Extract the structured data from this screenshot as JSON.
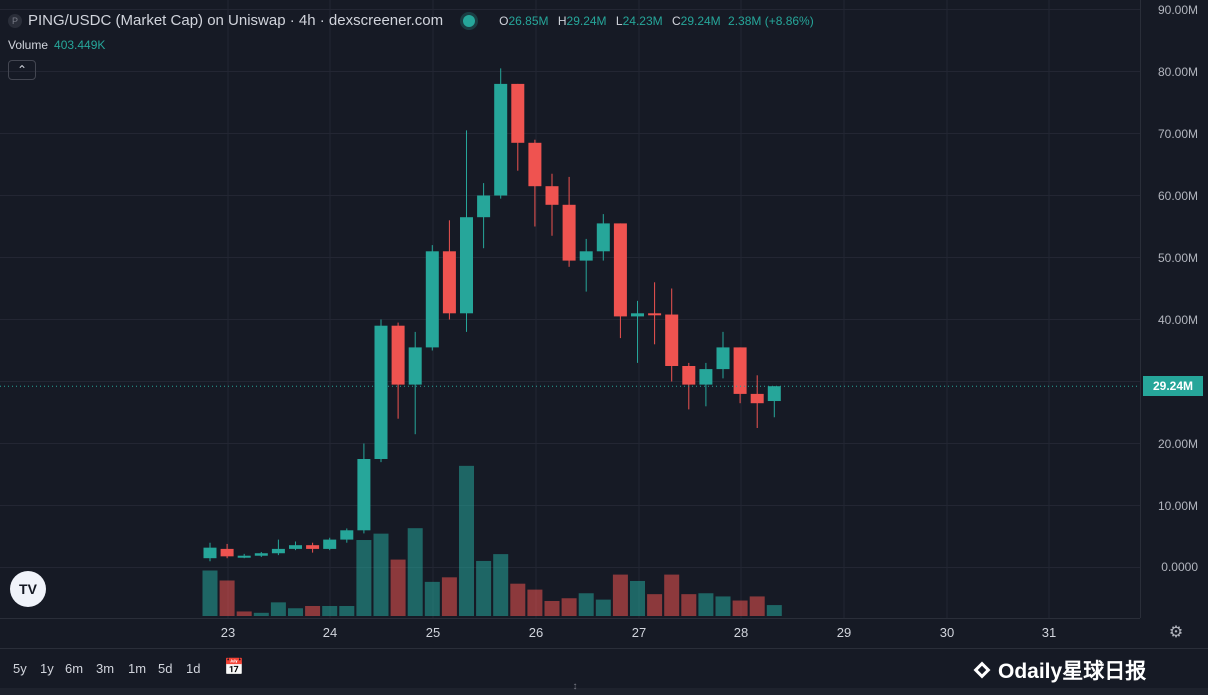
{
  "header": {
    "title": "PING/USDC (Market Cap) on Uniswap · 4h · dexscreener.com",
    "logo_letter": "P",
    "ohlc": {
      "open_key": "O",
      "open": "26.85M",
      "high_key": "H",
      "high": "29.24M",
      "low_key": "L",
      "low": "24.23M",
      "close_key": "C",
      "close": "29.24M",
      "change": "2.38M (+8.86%)"
    },
    "volume_label": "Volume",
    "volume_value": "403.449K",
    "collapse_icon": "chevron-up-icon"
  },
  "price_axis": {
    "labels": [
      "90.00M",
      "80.00M",
      "70.00M",
      "60.00M",
      "50.00M",
      "40.00M",
      "20.00M",
      "10.00M",
      "0.0000"
    ],
    "current_price": "29.24M"
  },
  "time_axis": {
    "labels": [
      "23",
      "24",
      "25",
      "26",
      "27",
      "28",
      "29",
      "30",
      "31"
    ]
  },
  "toolbar": {
    "ranges": [
      "5y",
      "1y",
      "6m",
      "3m",
      "1m",
      "5d",
      "1d"
    ]
  },
  "watermark": "Odaily星球日报",
  "colors": {
    "up": "#26a69a",
    "down": "#ef5350",
    "background": "#161a25",
    "grid": "#232633"
  },
  "chart_data": {
    "type": "candlestick",
    "title": "PING/USDC (Market Cap) on Uniswap · 4h · dexscreener.com",
    "unit": "M",
    "ylim": [
      -7.5,
      92
    ],
    "x": [
      "23",
      "24",
      "25",
      "26",
      "27",
      "28",
      "29",
      "30",
      "31"
    ],
    "candles": [
      {
        "o": 1.5,
        "h": 4.0,
        "l": 1.0,
        "c": 3.2
      },
      {
        "o": 3.0,
        "h": 3.8,
        "l": 1.5,
        "c": 1.8
      },
      {
        "o": 1.8,
        "h": 2.2,
        "l": 1.5,
        "c": 1.9
      },
      {
        "o": 1.9,
        "h": 2.5,
        "l": 1.7,
        "c": 2.3
      },
      {
        "o": 2.3,
        "h": 4.5,
        "l": 2.0,
        "c": 3.0
      },
      {
        "o": 3.0,
        "h": 4.2,
        "l": 2.8,
        "c": 3.6
      },
      {
        "o": 3.6,
        "h": 4.0,
        "l": 2.4,
        "c": 3.0
      },
      {
        "o": 3.0,
        "h": 4.8,
        "l": 2.8,
        "c": 4.5
      },
      {
        "o": 4.5,
        "h": 6.3,
        "l": 4.0,
        "c": 6.0
      },
      {
        "o": 6.0,
        "h": 20.0,
        "l": 5.5,
        "c": 17.5
      },
      {
        "o": 17.5,
        "h": 40.0,
        "l": 17.0,
        "c": 39.0
      },
      {
        "o": 39.0,
        "h": 39.5,
        "l": 24.0,
        "c": 29.5
      },
      {
        "o": 29.5,
        "h": 38.0,
        "l": 21.5,
        "c": 35.5
      },
      {
        "o": 35.5,
        "h": 52.0,
        "l": 35.0,
        "c": 51.0
      },
      {
        "o": 51.0,
        "h": 56.0,
        "l": 40.0,
        "c": 41.0
      },
      {
        "o": 41.0,
        "h": 70.5,
        "l": 38.0,
        "c": 56.5
      },
      {
        "o": 56.5,
        "h": 62.0,
        "l": 51.5,
        "c": 60.0
      },
      {
        "o": 60.0,
        "h": 80.5,
        "l": 59.5,
        "c": 78.0
      },
      {
        "o": 78.0,
        "h": 78.0,
        "l": 64.0,
        "c": 68.5
      },
      {
        "o": 68.5,
        "h": 69.0,
        "l": 55.0,
        "c": 61.5
      },
      {
        "o": 61.5,
        "h": 63.5,
        "l": 53.5,
        "c": 58.5
      },
      {
        "o": 58.5,
        "h": 63.0,
        "l": 48.5,
        "c": 49.5
      },
      {
        "o": 49.5,
        "h": 53.0,
        "l": 44.5,
        "c": 51.0
      },
      {
        "o": 51.0,
        "h": 57.0,
        "l": 49.5,
        "c": 55.5
      },
      {
        "o": 55.5,
        "h": 55.5,
        "l": 37.0,
        "c": 40.5
      },
      {
        "o": 40.5,
        "h": 43.0,
        "l": 33.0,
        "c": 41.0
      },
      {
        "o": 41.0,
        "h": 46.0,
        "l": 36.0,
        "c": 40.8
      },
      {
        "o": 40.8,
        "h": 45.0,
        "l": 30.0,
        "c": 32.5
      },
      {
        "o": 32.5,
        "h": 33.0,
        "l": 25.5,
        "c": 29.5
      },
      {
        "o": 29.5,
        "h": 33.0,
        "l": 26.0,
        "c": 32.0
      },
      {
        "o": 32.0,
        "h": 38.0,
        "l": 30.5,
        "c": 35.5
      },
      {
        "o": 35.5,
        "h": 35.5,
        "l": 26.5,
        "c": 28.0
      },
      {
        "o": 28.0,
        "h": 31.0,
        "l": 22.5,
        "c": 26.5
      },
      {
        "o": 26.85,
        "h": 29.24,
        "l": 24.23,
        "c": 29.24
      }
    ],
    "volume": [
      {
        "v": 1.0,
        "up": true
      },
      {
        "v": 0.78,
        "up": false
      },
      {
        "v": 0.1,
        "up": false
      },
      {
        "v": 0.07,
        "up": true
      },
      {
        "v": 0.3,
        "up": true
      },
      {
        "v": 0.17,
        "up": true
      },
      {
        "v": 0.22,
        "up": false
      },
      {
        "v": 0.22,
        "up": true
      },
      {
        "v": 0.22,
        "up": true
      },
      {
        "v": 1.67,
        "up": true
      },
      {
        "v": 1.81,
        "up": true
      },
      {
        "v": 1.24,
        "up": false
      },
      {
        "v": 1.93,
        "up": true
      },
      {
        "v": 0.75,
        "up": true
      },
      {
        "v": 0.85,
        "up": false
      },
      {
        "v": 3.3,
        "up": true
      },
      {
        "v": 1.21,
        "up": true
      },
      {
        "v": 1.36,
        "up": true
      },
      {
        "v": 0.71,
        "up": false
      },
      {
        "v": 0.58,
        "up": false
      },
      {
        "v": 0.33,
        "up": false
      },
      {
        "v": 0.39,
        "up": false
      },
      {
        "v": 0.5,
        "up": true
      },
      {
        "v": 0.36,
        "up": true
      },
      {
        "v": 0.91,
        "up": false
      },
      {
        "v": 0.77,
        "up": true
      },
      {
        "v": 0.48,
        "up": false
      },
      {
        "v": 0.91,
        "up": false
      },
      {
        "v": 0.48,
        "up": false
      },
      {
        "v": 0.5,
        "up": true
      },
      {
        "v": 0.43,
        "up": true
      },
      {
        "v": 0.34,
        "up": false
      },
      {
        "v": 0.43,
        "up": false
      },
      {
        "v": 0.24,
        "up": true
      }
    ]
  }
}
